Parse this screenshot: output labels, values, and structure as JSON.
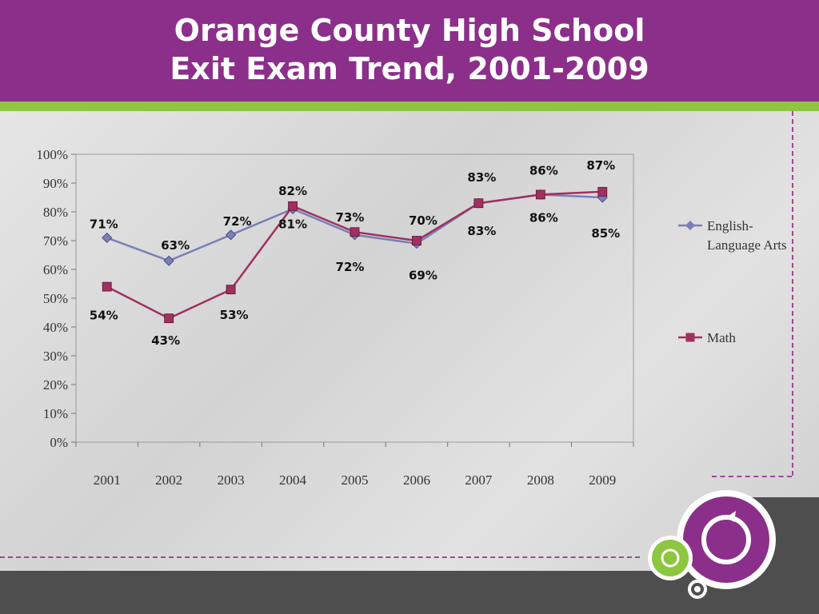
{
  "header": {
    "title_line1": "Orange County High School",
    "title_line2": "Exit Exam Trend, 2001-2009"
  },
  "colors": {
    "header_bg": "#8b2f8a",
    "accent_green": "#8dc63f",
    "ela_line": "#7b7fb8",
    "math_line": "#a0305f"
  },
  "chart_data": {
    "type": "line",
    "categories": [
      "2001",
      "2002",
      "2003",
      "2004",
      "2005",
      "2006",
      "2007",
      "2008",
      "2009"
    ],
    "series": [
      {
        "name": "English-Language Arts",
        "marker": "diamond",
        "values": [
          71,
          63,
          72,
          81,
          72,
          69,
          83,
          86,
          85
        ]
      },
      {
        "name": "Math",
        "marker": "square",
        "values": [
          54,
          43,
          53,
          82,
          73,
          70,
          83,
          86,
          87
        ]
      }
    ],
    "y_ticks": [
      "0%",
      "10%",
      "20%",
      "30%",
      "40%",
      "50%",
      "60%",
      "70%",
      "80%",
      "90%",
      "100%"
    ],
    "ylim": [
      0,
      100
    ],
    "legend_position": "right",
    "data_labels": [
      [
        "71%",
        "63%",
        "72%",
        "81%",
        "72%",
        "69%",
        "83%",
        "86%",
        "85%"
      ],
      [
        "54%",
        "43%",
        "53%",
        "82%",
        "73%",
        "70%",
        "83%",
        "86%",
        "87%"
      ]
    ]
  }
}
